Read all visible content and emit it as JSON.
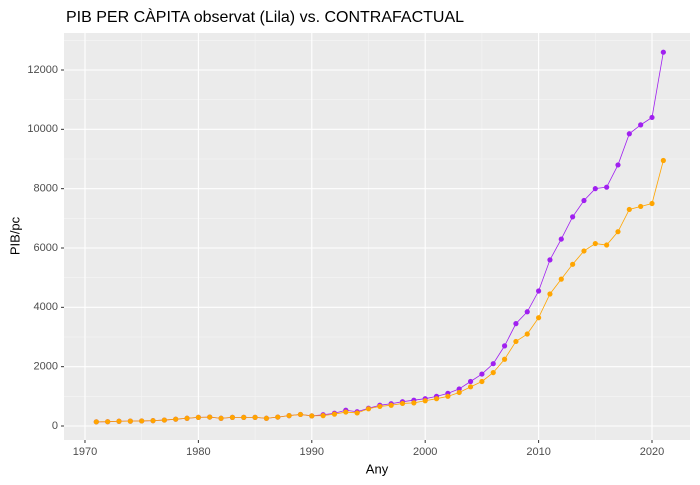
{
  "chart_data": {
    "type": "line",
    "title": "PIB PER CÀPITA observat (Lila) vs. CONTRAFACTUAL",
    "x_label": "Any",
    "y_label": "PIB/pc",
    "x": [
      1971,
      1972,
      1973,
      1974,
      1975,
      1976,
      1977,
      1978,
      1979,
      1980,
      1981,
      1982,
      1983,
      1984,
      1985,
      1986,
      1987,
      1988,
      1989,
      1990,
      1991,
      1992,
      1993,
      1994,
      1995,
      1996,
      1997,
      1998,
      1999,
      2000,
      2001,
      2002,
      2003,
      2004,
      2005,
      2006,
      2007,
      2008,
      2009,
      2010,
      2011,
      2012,
      2013,
      2014,
      2015,
      2016,
      2017,
      2018,
      2019,
      2020,
      2021
    ],
    "series": [
      {
        "color": "#a020f0",
        "values": [
          140,
          145,
          160,
          165,
          170,
          180,
          200,
          230,
          260,
          290,
          300,
          260,
          290,
          290,
          290,
          260,
          300,
          350,
          390,
          340,
          380,
          430,
          530,
          480,
          600,
          700,
          750,
          820,
          870,
          920,
          1000,
          1100,
          1250,
          1500,
          1750,
          2100,
          2700,
          3450,
          3850,
          4550,
          5600,
          6300,
          7050,
          7600,
          8000,
          8050,
          8800,
          9850,
          10150,
          10400,
          12600
        ]
      },
      {
        "color": "#ffa500",
        "values": [
          140,
          145,
          160,
          165,
          170,
          180,
          200,
          230,
          260,
          290,
          300,
          260,
          290,
          290,
          290,
          260,
          300,
          350,
          390,
          340,
          350,
          400,
          470,
          440,
          580,
          660,
          700,
          760,
          780,
          850,
          920,
          1000,
          1130,
          1320,
          1500,
          1800,
          2250,
          2850,
          3100,
          3650,
          4450,
          4950,
          5450,
          5900,
          6150,
          6100,
          6550,
          7300,
          7400,
          7500,
          8950
        ]
      }
    ],
    "xlim": [
      1968.15,
      2023.35
    ],
    "xticks": [
      1970,
      1980,
      1990,
      2000,
      2010,
      2020
    ],
    "ylim": [
      -472,
      13247
    ],
    "yticks": [
      0,
      2000,
      4000,
      6000,
      8000,
      10000,
      12000
    ],
    "grid": true
  }
}
